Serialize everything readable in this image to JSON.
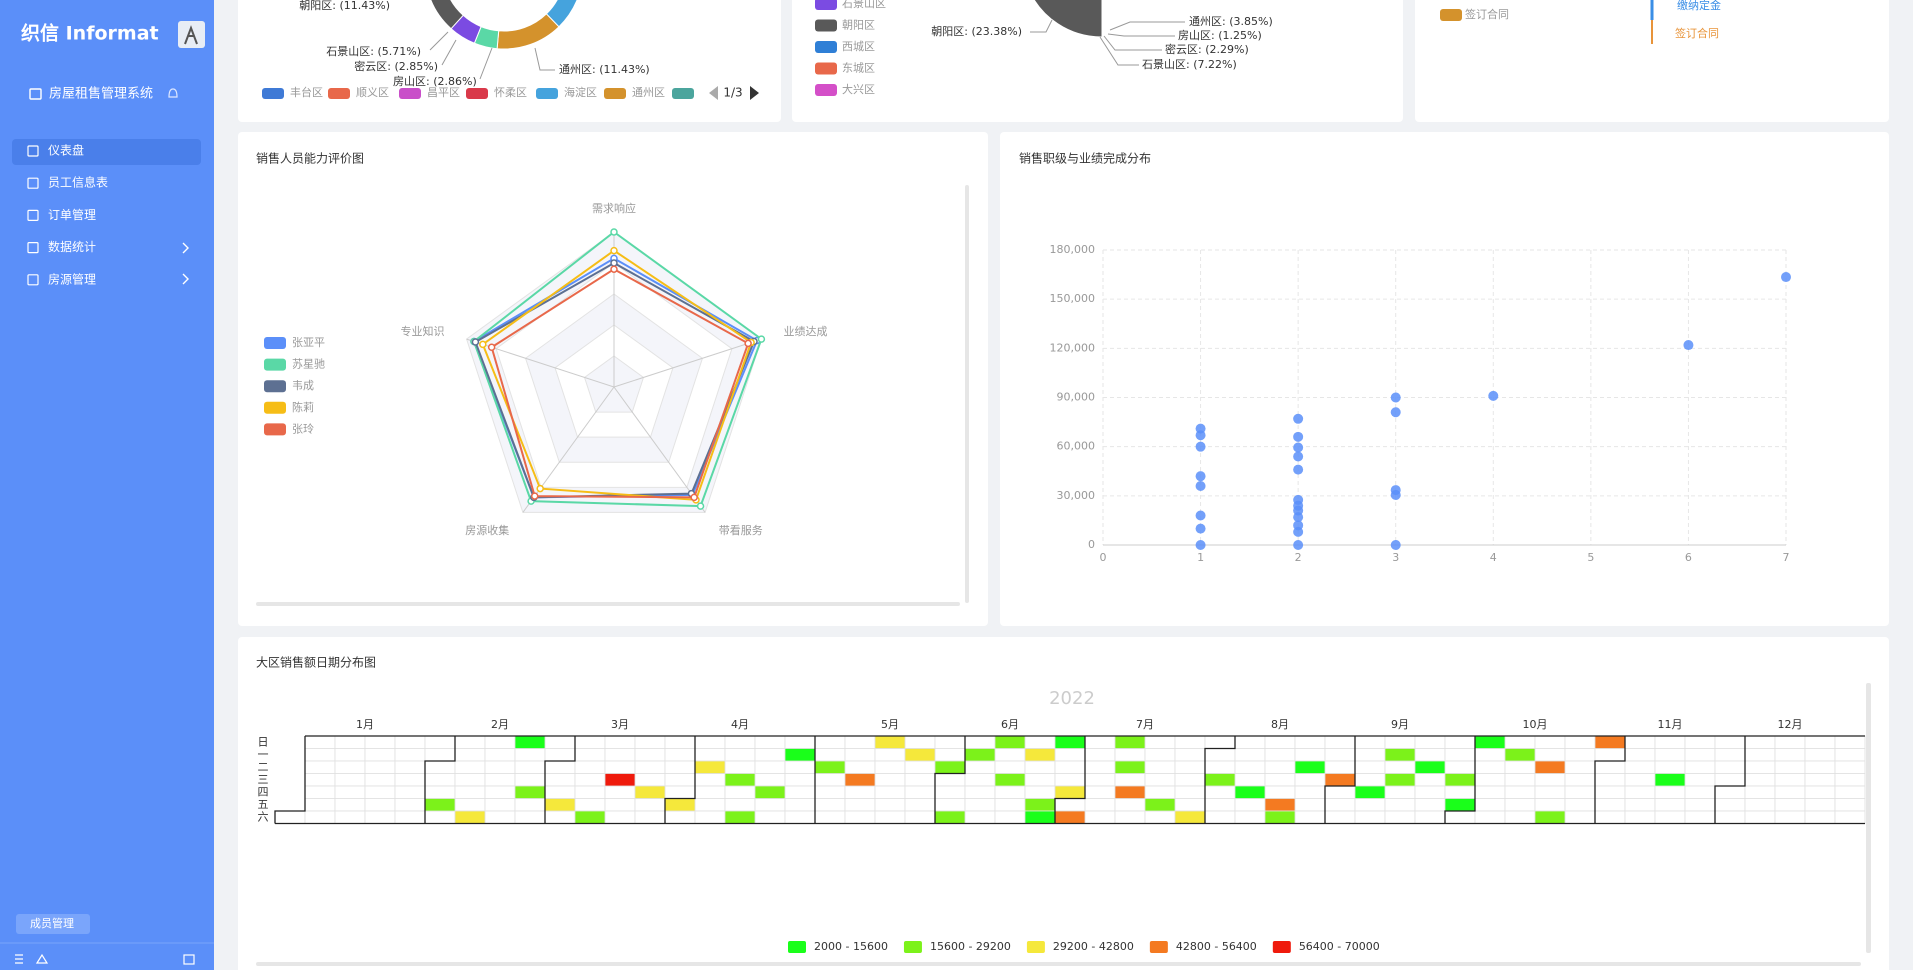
{
  "sidebar": {
    "logo": "织信 Informat",
    "app_name": "房屋租售管理系统",
    "menu": [
      "仪表盘",
      "员工信息表",
      "订单管理",
      "数据统计",
      "房源管理"
    ],
    "member_button": "成员管理"
  },
  "top_panels": [
    {
      "labels": [
        "朝阳区: (11.43%)",
        "石景山区: (5.71%)",
        "密云区: (2.85%)",
        "房山区: (2.86%)",
        "通州区: (11.43%)"
      ],
      "legend": [
        {
          "name": "丰台区",
          "color": "#3f7ad6"
        },
        {
          "name": "顺义区",
          "color": "#e8684a"
        },
        {
          "name": "昌平区",
          "color": "#c94ec9"
        },
        {
          "name": "怀柔区",
          "color": "#d9394a"
        },
        {
          "name": "海淀区",
          "color": "#45a3dd"
        },
        {
          "name": "通州区",
          "color": "#d4922c"
        },
        {
          "name": null,
          "color": "#4ba59d"
        }
      ],
      "pager": "1/3"
    },
    {
      "labels": [
        "朝阳区: (23.38%)",
        "通州区: (3.85%)",
        "房山区: (1.25%)",
        "密云区: (2.29%)",
        "石景山区: (7.22%)"
      ],
      "legend": [
        {
          "name": "石景山区",
          "color": "#7b4be2"
        },
        {
          "name": "朝阳区",
          "color": "#595959"
        },
        {
          "name": "西城区",
          "color": "#2f7fd6"
        },
        {
          "name": "东城区",
          "color": "#e8684a"
        },
        {
          "name": "大兴区",
          "color": "#d44fc8"
        }
      ]
    },
    {
      "labels": [
        "缴纳定金",
        "签订合同"
      ],
      "label_colors": [
        "#3a8ee6",
        "#e8943a"
      ],
      "legend": [
        {
          "name": "签订合同",
          "color": "#d4922c"
        }
      ]
    }
  ],
  "chart_data": [
    {
      "type": "radar",
      "title": "销售人员能力评价图",
      "indicators": [
        {
          "name": "需求响应",
          "max": 100
        },
        {
          "name": "业绩达成",
          "max": 100
        },
        {
          "name": "带看服务",
          "max": 100
        },
        {
          "name": "房源收集",
          "max": 100
        },
        {
          "name": "专业知识",
          "max": 100
        }
      ],
      "series": [
        {
          "name": "张亚平",
          "color": "#5b8ff9",
          "values": [
            83,
            97,
            86,
            88,
            95
          ]
        },
        {
          "name": "苏星驰",
          "color": "#5ad8a6",
          "values": [
            100,
            100,
            95,
            91,
            95
          ]
        },
        {
          "name": "韦成",
          "color": "#5d7092",
          "values": [
            80,
            95,
            85,
            88,
            94
          ]
        },
        {
          "name": "陈莉",
          "color": "#f6bd16",
          "values": [
            88,
            93,
            90,
            81,
            89
          ]
        },
        {
          "name": "张玲",
          "color": "#e8684a",
          "values": [
            76,
            91,
            88,
            87,
            83
          ]
        }
      ]
    },
    {
      "type": "scatter",
      "title": "销售职级与业绩完成分布",
      "color": "#5b8ff9",
      "x": [
        1,
        1,
        1,
        1,
        1,
        1,
        1,
        1,
        2,
        2,
        2,
        2,
        2,
        2,
        2,
        2,
        2,
        2,
        2,
        2,
        3,
        3,
        3,
        3,
        3,
        4,
        6,
        7
      ],
      "values": [
        71000,
        67000,
        60000,
        42000,
        36000,
        18000,
        10000,
        0,
        77000,
        66000,
        59500,
        54000,
        46000,
        27500,
        24000,
        21000,
        17000,
        12000,
        8000,
        0,
        90000,
        81000,
        33500,
        30500,
        0,
        91000,
        122000,
        163500
      ],
      "xlim": [
        0,
        7
      ],
      "xticks": [
        0,
        1,
        2,
        3,
        4,
        5,
        6,
        7
      ],
      "ylim": [
        0,
        180000
      ],
      "yticks": [
        0,
        {
          "value": 30000,
          "label": "30,000"
        },
        {
          "value": 60000,
          "label": "60,000"
        },
        {
          "value": 90000,
          "label": "90,000"
        },
        {
          "value": 120000,
          "label": "120,000"
        },
        {
          "value": 150000,
          "label": "150,000"
        },
        {
          "value": 180000,
          "label": "180,000"
        }
      ],
      "grid": true
    },
    {
      "type": "calendar",
      "title": "大区销售额日期分布图",
      "year": "2022",
      "months": [
        "1月",
        "2月",
        "3月",
        "4月",
        "5月",
        "6月",
        "7月",
        "8月",
        "9月",
        "10月",
        "11月",
        "12月"
      ],
      "weekdays": [
        "日",
        "一",
        "二",
        "三",
        "四",
        "五",
        "六"
      ],
      "dates": [
        "2022-02-04",
        "2022-02-12",
        "2022-02-20",
        "2022-02-24",
        "2022-03-04",
        "2022-03-12",
        "2022-03-16",
        "2022-03-24",
        "2022-04-01",
        "2022-04-05",
        "2022-04-13",
        "2022-04-16",
        "2022-04-21",
        "2022-04-25",
        "2022-05-03",
        "2022-05-11",
        "2022-05-15",
        "2022-05-23",
        "2022-05-31",
        "2022-06-04",
        "2022-06-06",
        "2022-06-12",
        "2022-06-15",
        "2022-06-20",
        "2022-06-24",
        "2022-06-25",
        "2022-06-26",
        "2022-06-30",
        "2022-07-02",
        "2022-07-10",
        "2022-07-12",
        "2022-07-14",
        "2022-07-22",
        "2022-07-30",
        "2022-08-03",
        "2022-08-11",
        "2022-08-19",
        "2022-08-20",
        "2022-08-23",
        "2022-08-31",
        "2022-09-08",
        "2022-09-12",
        "2022-09-14",
        "2022-09-20",
        "2022-09-28",
        "2022-09-30",
        "2022-10-02",
        "2022-10-10",
        "2022-10-18",
        "2022-10-22",
        "2022-10-30",
        "2022-11-16"
      ],
      "values": [
        22000,
        37000,
        8000,
        26000,
        30000,
        18000,
        65000,
        33000,
        41000,
        40000,
        23000,
        25000,
        17000,
        12000,
        27000,
        45000,
        35000,
        38000,
        21000,
        20000,
        18000,
        22000,
        19000,
        31000,
        29000,
        2000,
        10000,
        36000,
        44000,
        20000,
        16000,
        55000,
        21000,
        39000,
        28000,
        7000,
        47000,
        26000,
        4000,
        50000,
        11000,
        25000,
        24000,
        14000,
        20000,
        3000,
        6000,
        17000,
        52000,
        22000,
        48000,
        9000
      ],
      "pieces": [
        {
          "min": 2000,
          "max": 15600,
          "label": "2000 - 15600",
          "color": "#1aff1a"
        },
        {
          "min": 15600,
          "max": 29200,
          "label": "15600 - 29200",
          "color": "#7cf21a"
        },
        {
          "min": 29200,
          "max": 42800,
          "label": "29200 - 42800",
          "color": "#f5e83b"
        },
        {
          "min": 42800,
          "max": 56400,
          "label": "42800 - 56400",
          "color": "#f47a21"
        },
        {
          "min": 56400,
          "max": 70000,
          "label": "56400 - 70000",
          "color": "#ef1a0c"
        }
      ]
    }
  ]
}
